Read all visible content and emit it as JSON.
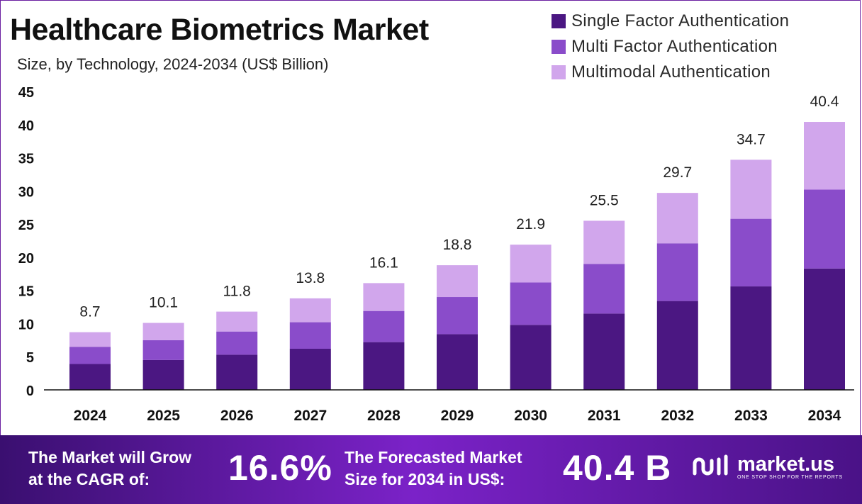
{
  "colors": {
    "single": "#4b1782",
    "multi": "#8a4cca",
    "multimodal": "#d1a6ec",
    "axis": "#111111"
  },
  "chart_data": {
    "type": "bar",
    "stacked": true,
    "title": "Healthcare Biometrics Market",
    "subtitle": "Size, by Technology, 2024-2034 (US$ Billion)",
    "categories": [
      "2024",
      "2025",
      "2026",
      "2027",
      "2028",
      "2029",
      "2030",
      "2031",
      "2032",
      "2033",
      "2034"
    ],
    "series": [
      {
        "name": "Single Factor Authentication",
        "color": "#4b1782",
        "values": [
          3.9,
          4.5,
          5.3,
          6.2,
          7.2,
          8.4,
          9.8,
          11.5,
          13.4,
          15.6,
          18.3
        ]
      },
      {
        "name": "Multi Factor Authentication",
        "color": "#8a4cca",
        "values": [
          2.6,
          3.0,
          3.5,
          4.0,
          4.7,
          5.6,
          6.4,
          7.5,
          8.7,
          10.2,
          11.9
        ]
      },
      {
        "name": "Multimodal Authentication",
        "color": "#d1a6ec",
        "values": [
          2.2,
          2.6,
          3.0,
          3.6,
          4.2,
          4.8,
          5.7,
          6.5,
          7.6,
          8.9,
          10.2
        ]
      }
    ],
    "totals": [
      8.7,
      10.1,
      11.8,
      13.8,
      16.1,
      18.8,
      21.9,
      25.5,
      29.7,
      34.7,
      40.4
    ],
    "total_labels": [
      "8.7",
      "10.1",
      "11.8",
      "13.8",
      "16.1",
      "18.8",
      "21.9",
      "25.5",
      "29.7",
      "34.7",
      "40.4"
    ],
    "y_ticks": [
      "0",
      "5",
      "10",
      "15",
      "20",
      "25",
      "30",
      "35",
      "40",
      "45"
    ],
    "ylim": [
      0,
      45
    ],
    "grid": false,
    "legend_position": "top-right"
  },
  "footer": {
    "cagr_text_line1": "The Market will Grow",
    "cagr_text_line2": "at the CAGR of:",
    "cagr_value": "16.6%",
    "forecast_text_line1": "The Forecasted Market",
    "forecast_text_line2": "Size for 2034 in US$:",
    "forecast_value": "40.4 B",
    "logo_name": "market.us",
    "logo_tagline": "ONE STOP SHOP FOR THE REPORTS"
  }
}
